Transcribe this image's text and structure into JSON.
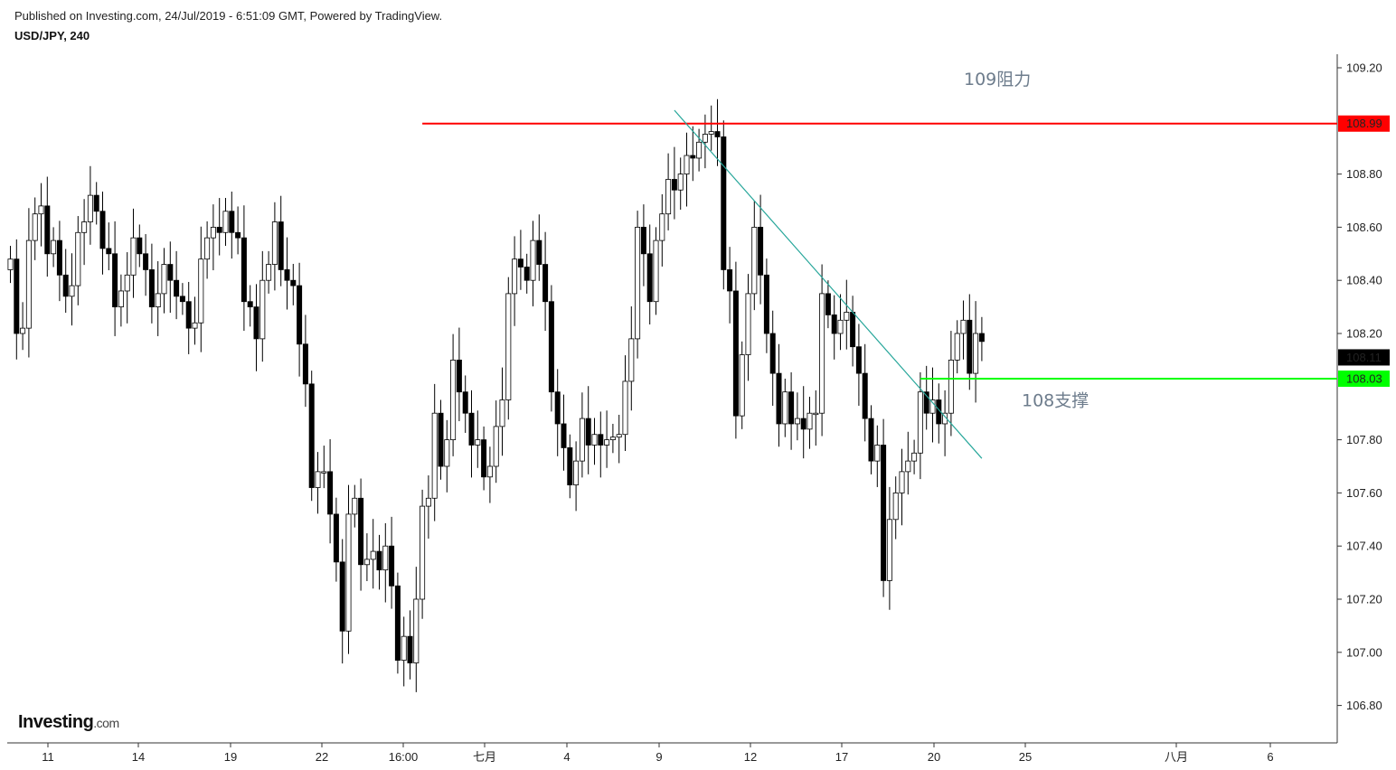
{
  "header": {
    "published": "Published on Investing.com, 24/Jul/2019 - 6:51:09 GMT, Powered by TradingView.",
    "symbol": "USD/JPY, 240"
  },
  "logo": {
    "brand": "Investing",
    "suffix": ".com"
  },
  "colors": {
    "resistance": "#ff0000",
    "support": "#00ff00",
    "trendline": "#26a69a",
    "current_price_bg": "#000000",
    "annotation": "#6d7c8c"
  },
  "chart_data": {
    "type": "candlestick",
    "title": "USD/JPY, 240",
    "ylim": [
      106.7,
      109.3
    ],
    "y_ticks": [
      "109.20",
      "108.80",
      "108.60",
      "108.40",
      "108.20",
      "107.80",
      "107.60",
      "107.40",
      "107.20",
      "107.00",
      "106.80"
    ],
    "x_ticks": [
      "11",
      "14",
      "19",
      "22",
      "16:00",
      "七月",
      "4",
      "9",
      "12",
      "17",
      "20",
      "25",
      "八月",
      "6"
    ],
    "price_labels": [
      {
        "label": "108.99",
        "value": 108.99,
        "kind": "resistance"
      },
      {
        "label": "108.11",
        "value": 108.11,
        "kind": "current"
      },
      {
        "label": "108.03",
        "value": 108.03,
        "kind": "support"
      }
    ],
    "horizontal_lines": [
      {
        "value": 108.99,
        "kind": "resistance",
        "from_candle": 67
      },
      {
        "value": 108.03,
        "kind": "support",
        "from_candle": 148
      }
    ],
    "trendline": {
      "from": {
        "candle": 108,
        "value": 109.04
      },
      "to": {
        "candle": 158,
        "value": 107.73
      }
    },
    "annotations": [
      {
        "text": "109阻力",
        "near_value": 109.16
      },
      {
        "text": "108支撑",
        "near_value": 107.95
      }
    ],
    "closes": [
      108.48,
      108.2,
      108.22,
      108.55,
      108.65,
      108.68,
      108.5,
      108.55,
      108.42,
      108.34,
      108.38,
      108.58,
      108.62,
      108.72,
      108.66,
      108.52,
      108.5,
      108.3,
      108.36,
      108.42,
      108.56,
      108.5,
      108.44,
      108.3,
      108.35,
      108.46,
      108.4,
      108.34,
      108.32,
      108.22,
      108.24,
      108.48,
      108.56,
      108.6,
      108.58,
      108.66,
      108.58,
      108.56,
      108.32,
      108.3,
      108.18,
      108.4,
      108.46,
      108.62,
      108.44,
      108.4,
      108.38,
      108.16,
      108.01,
      107.62,
      107.68,
      107.68,
      107.52,
      107.34,
      107.08,
      107.52,
      107.58,
      107.33,
      107.35,
      107.38,
      107.31,
      107.4,
      107.25,
      106.97,
      107.06,
      106.96,
      107.2,
      107.55,
      107.58,
      107.9,
      107.7,
      107.8,
      108.1,
      107.98,
      107.9,
      107.78,
      107.8,
      107.66,
      107.7,
      107.85,
      107.95,
      108.35,
      108.48,
      108.45,
      108.4,
      108.55,
      108.46,
      108.32,
      107.98,
      107.86,
      107.77,
      107.63,
      107.72,
      107.88,
      107.78,
      107.82,
      107.78,
      107.8,
      107.81,
      107.82,
      108.02,
      108.18,
      108.6,
      108.5,
      108.32,
      108.55,
      108.65,
      108.78,
      108.74,
      108.8,
      108.87,
      108.86,
      108.92,
      108.95,
      108.96,
      108.94,
      108.44,
      108.36,
      107.89,
      108.12,
      108.35,
      108.6,
      108.42,
      108.2,
      108.05,
      107.86,
      107.98,
      107.86,
      107.88,
      107.84,
      107.9,
      107.9,
      108.35,
      108.27,
      108.2,
      108.25,
      108.28,
      108.15,
      108.05,
      107.88,
      107.72,
      107.78,
      107.27,
      107.5,
      107.6,
      107.68,
      107.72,
      107.75,
      107.98,
      107.9,
      107.95,
      107.86,
      107.9,
      108.1,
      108.2,
      108.25,
      108.05,
      108.2,
      108.17
    ]
  }
}
